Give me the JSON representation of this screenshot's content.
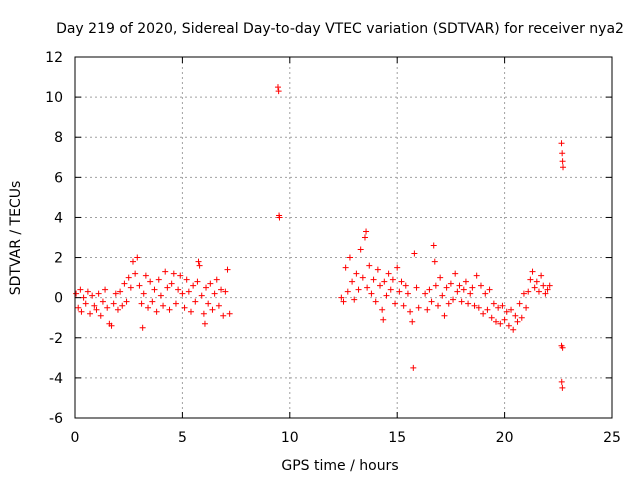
{
  "chart_data": {
    "type": "scatter",
    "title": "Day 219 of 2020, Sidereal Day-to-day VTEC variation (SDTVAR) for receiver nya2",
    "xlabel": "GPS time / hours",
    "ylabel": "SDTVAR / TECUs",
    "xlim": [
      0,
      25
    ],
    "ylim": [
      -6,
      12
    ],
    "xticks": [
      "0",
      "5",
      "10",
      "15",
      "20",
      "25"
    ],
    "yticks": [
      "-6",
      "-4",
      "-2",
      "0",
      "2",
      "4",
      "6",
      "8",
      "10",
      "12"
    ],
    "grid": true,
    "marker": "+",
    "colors": {
      "series": "#ff0000",
      "grid": "#a0a0a0",
      "axis": "#000000"
    },
    "series": [
      {
        "name": "SDTVAR",
        "points": [
          [
            0.05,
            0.2
          ],
          [
            0.15,
            -0.5
          ],
          [
            0.25,
            0.4
          ],
          [
            0.3,
            -0.7
          ],
          [
            0.4,
            0.0
          ],
          [
            0.5,
            -0.3
          ],
          [
            0.6,
            0.3
          ],
          [
            0.7,
            -0.8
          ],
          [
            0.8,
            0.1
          ],
          [
            0.9,
            -0.4
          ],
          [
            1.0,
            -0.6
          ],
          [
            1.1,
            0.2
          ],
          [
            1.2,
            -0.9
          ],
          [
            1.3,
            -0.2
          ],
          [
            1.4,
            0.4
          ],
          [
            1.5,
            -0.5
          ],
          [
            1.6,
            -1.3
          ],
          [
            1.7,
            -1.4
          ],
          [
            1.8,
            -0.3
          ],
          [
            1.9,
            0.2
          ],
          [
            2.0,
            -0.6
          ],
          [
            2.1,
            0.3
          ],
          [
            2.2,
            -0.4
          ],
          [
            2.3,
            0.7
          ],
          [
            2.4,
            -0.2
          ],
          [
            2.5,
            1.0
          ],
          [
            2.6,
            0.5
          ],
          [
            2.7,
            1.8
          ],
          [
            2.8,
            1.2
          ],
          [
            2.9,
            2.0
          ],
          [
            3.0,
            0.6
          ],
          [
            3.1,
            -0.3
          ],
          [
            3.15,
            -1.5
          ],
          [
            3.2,
            0.2
          ],
          [
            3.3,
            1.1
          ],
          [
            3.4,
            -0.5
          ],
          [
            3.5,
            0.8
          ],
          [
            3.6,
            -0.2
          ],
          [
            3.7,
            0.4
          ],
          [
            3.8,
            -0.7
          ],
          [
            3.9,
            0.9
          ],
          [
            4.0,
            0.1
          ],
          [
            4.1,
            -0.4
          ],
          [
            4.2,
            1.3
          ],
          [
            4.3,
            0.5
          ],
          [
            4.4,
            -0.6
          ],
          [
            4.5,
            0.7
          ],
          [
            4.6,
            1.2
          ],
          [
            4.7,
            -0.3
          ],
          [
            4.8,
            0.4
          ],
          [
            4.9,
            1.1
          ],
          [
            5.0,
            0.2
          ],
          [
            5.1,
            -0.5
          ],
          [
            5.2,
            0.9
          ],
          [
            5.3,
            0.3
          ],
          [
            5.4,
            -0.7
          ],
          [
            5.5,
            0.6
          ],
          [
            5.6,
            -0.2
          ],
          [
            5.7,
            0.8
          ],
          [
            5.75,
            1.8
          ],
          [
            5.8,
            1.6
          ],
          [
            5.9,
            0.1
          ],
          [
            6.0,
            -0.8
          ],
          [
            6.05,
            -1.3
          ],
          [
            6.1,
            0.5
          ],
          [
            6.2,
            -0.3
          ],
          [
            6.3,
            0.7
          ],
          [
            6.4,
            -0.6
          ],
          [
            6.5,
            0.2
          ],
          [
            6.6,
            0.9
          ],
          [
            6.7,
            -0.4
          ],
          [
            6.8,
            0.4
          ],
          [
            6.9,
            -0.9
          ],
          [
            7.0,
            0.3
          ],
          [
            7.1,
            1.4
          ],
          [
            7.2,
            -0.8
          ],
          [
            9.45,
            10.5
          ],
          [
            9.48,
            10.3
          ],
          [
            9.5,
            4.1
          ],
          [
            9.52,
            4.0
          ],
          [
            12.4,
            0.0
          ],
          [
            12.5,
            -0.2
          ],
          [
            12.6,
            1.5
          ],
          [
            12.7,
            0.3
          ],
          [
            12.8,
            2.0
          ],
          [
            12.9,
            0.8
          ],
          [
            13.0,
            -0.1
          ],
          [
            13.1,
            1.2
          ],
          [
            13.2,
            0.4
          ],
          [
            13.3,
            2.4
          ],
          [
            13.4,
            1.0
          ],
          [
            13.5,
            3.0
          ],
          [
            13.55,
            3.3
          ],
          [
            13.6,
            0.5
          ],
          [
            13.7,
            1.6
          ],
          [
            13.8,
            0.2
          ],
          [
            13.9,
            0.9
          ],
          [
            14.0,
            -0.2
          ],
          [
            14.1,
            1.4
          ],
          [
            14.2,
            0.6
          ],
          [
            14.3,
            -0.6
          ],
          [
            14.35,
            -1.1
          ],
          [
            14.4,
            0.8
          ],
          [
            14.5,
            0.1
          ],
          [
            14.6,
            1.2
          ],
          [
            14.7,
            0.4
          ],
          [
            14.8,
            0.9
          ],
          [
            14.9,
            -0.3
          ],
          [
            15.0,
            1.5
          ],
          [
            15.1,
            0.3
          ],
          [
            15.2,
            0.8
          ],
          [
            15.3,
            -0.4
          ],
          [
            15.4,
            0.6
          ],
          [
            15.5,
            0.2
          ],
          [
            15.6,
            -0.7
          ],
          [
            15.7,
            -1.2
          ],
          [
            15.75,
            -3.5
          ],
          [
            15.8,
            2.2
          ],
          [
            15.9,
            0.5
          ],
          [
            16.0,
            -0.5
          ],
          [
            16.3,
            0.2
          ],
          [
            16.4,
            -0.6
          ],
          [
            16.5,
            0.4
          ],
          [
            16.6,
            -0.2
          ],
          [
            16.7,
            2.6
          ],
          [
            16.75,
            1.8
          ],
          [
            16.8,
            0.6
          ],
          [
            16.9,
            -0.4
          ],
          [
            17.0,
            1.0
          ],
          [
            17.1,
            0.1
          ],
          [
            17.2,
            -0.9
          ],
          [
            17.3,
            0.5
          ],
          [
            17.4,
            -0.3
          ],
          [
            17.5,
            0.7
          ],
          [
            17.6,
            -0.1
          ],
          [
            17.7,
            1.2
          ],
          [
            17.8,
            0.3
          ],
          [
            17.9,
            0.6
          ],
          [
            18.0,
            -0.2
          ],
          [
            18.1,
            0.4
          ],
          [
            18.2,
            0.8
          ],
          [
            18.3,
            -0.3
          ],
          [
            18.4,
            0.2
          ],
          [
            18.5,
            0.5
          ],
          [
            18.6,
            -0.4
          ],
          [
            18.7,
            1.1
          ],
          [
            18.8,
            -0.5
          ],
          [
            18.9,
            0.6
          ],
          [
            19.0,
            -0.8
          ],
          [
            19.1,
            0.2
          ],
          [
            19.2,
            -0.6
          ],
          [
            19.3,
            0.4
          ],
          [
            19.4,
            -1.0
          ],
          [
            19.5,
            -0.3
          ],
          [
            19.6,
            -1.2
          ],
          [
            19.7,
            -0.5
          ],
          [
            19.8,
            -1.3
          ],
          [
            19.9,
            -0.4
          ],
          [
            20.0,
            -1.1
          ],
          [
            20.1,
            -0.7
          ],
          [
            20.2,
            -1.4
          ],
          [
            20.3,
            -0.6
          ],
          [
            20.4,
            -1.6
          ],
          [
            20.5,
            -0.9
          ],
          [
            20.6,
            -1.2
          ],
          [
            20.7,
            -0.3
          ],
          [
            20.8,
            -1.0
          ],
          [
            20.9,
            0.2
          ],
          [
            21.0,
            -0.5
          ],
          [
            21.1,
            0.3
          ],
          [
            21.2,
            0.9
          ],
          [
            21.3,
            1.3
          ],
          [
            21.4,
            0.5
          ],
          [
            21.5,
            0.8
          ],
          [
            21.6,
            0.3
          ],
          [
            21.7,
            1.1
          ],
          [
            21.8,
            0.6
          ],
          [
            21.9,
            0.2
          ],
          [
            22.0,
            0.4
          ],
          [
            22.1,
            0.6
          ],
          [
            22.65,
            7.7
          ],
          [
            22.68,
            7.2
          ],
          [
            22.7,
            6.8
          ],
          [
            22.72,
            6.5
          ],
          [
            22.65,
            -2.4
          ],
          [
            22.7,
            -2.5
          ],
          [
            22.66,
            -4.2
          ],
          [
            22.69,
            -4.5
          ]
        ]
      }
    ]
  }
}
